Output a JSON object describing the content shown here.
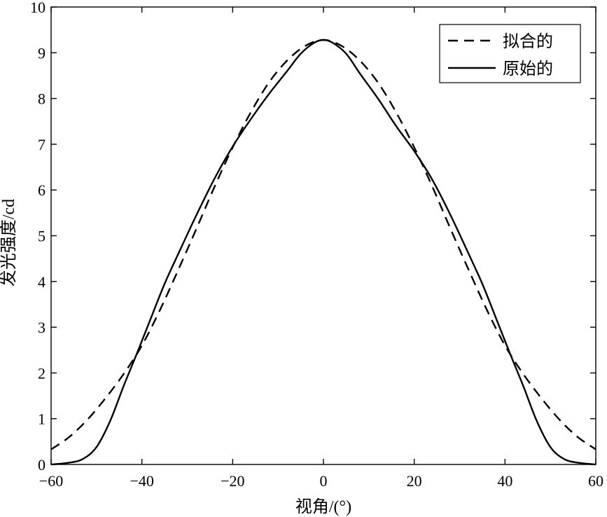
{
  "chart_data": {
    "type": "line",
    "xlabel": "视角/(°)",
    "ylabel": "发光强度/cd",
    "xlim": [
      -60,
      60
    ],
    "ylim": [
      0,
      10
    ],
    "xticks": [
      -60,
      -40,
      -20,
      0,
      20,
      40,
      60
    ],
    "yticks": [
      0,
      1,
      2,
      3,
      4,
      5,
      6,
      7,
      8,
      9,
      10
    ],
    "xtick_labels": [
      "−60",
      "−40",
      "−20",
      "0",
      "20",
      "40",
      "60"
    ],
    "ytick_labels": [
      "0",
      "1",
      "2",
      "3",
      "4",
      "5",
      "6",
      "7",
      "8",
      "9",
      "10"
    ],
    "grid": false,
    "legend_position": "top-right",
    "series": [
      {
        "name": "拟合的",
        "style": "dashed",
        "color": "#000000",
        "x": [
          -60,
          -56,
          -52,
          -48,
          -44,
          -40,
          -36,
          -32,
          -28,
          -24,
          -20,
          -16,
          -12,
          -8,
          -4,
          0,
          4,
          8,
          12,
          16,
          20,
          24,
          28,
          32,
          36,
          40,
          44,
          48,
          52,
          56,
          60
        ],
        "y": [
          0.33,
          0.6,
          0.98,
          1.45,
          1.98,
          2.6,
          3.38,
          4.25,
          5.15,
          6.07,
          6.93,
          7.7,
          8.35,
          8.83,
          9.15,
          9.28,
          9.15,
          8.83,
          8.35,
          7.7,
          6.93,
          6.07,
          5.15,
          4.25,
          3.38,
          2.6,
          1.98,
          1.45,
          0.98,
          0.6,
          0.33
        ]
      },
      {
        "name": "原始的",
        "style": "solid",
        "color": "#000000",
        "x": [
          -60,
          -56,
          -53,
          -50,
          -47,
          -44,
          -41,
          -38,
          -35,
          -32,
          -28,
          -24,
          -20,
          -16,
          -12,
          -8,
          -5,
          -2,
          0,
          2,
          5,
          8,
          12,
          16,
          20,
          24,
          28,
          32,
          35,
          38,
          41,
          44,
          47,
          50,
          53,
          56,
          60
        ],
        "y": [
          0.0,
          0.04,
          0.12,
          0.38,
          0.95,
          1.72,
          2.45,
          3.2,
          3.95,
          4.6,
          5.45,
          6.25,
          6.95,
          7.55,
          8.1,
          8.6,
          8.98,
          9.22,
          9.28,
          9.22,
          8.98,
          8.55,
          8.0,
          7.4,
          6.85,
          6.22,
          5.45,
          4.6,
          3.95,
          3.2,
          2.45,
          1.72,
          0.95,
          0.38,
          0.12,
          0.04,
          0.0
        ]
      }
    ]
  }
}
